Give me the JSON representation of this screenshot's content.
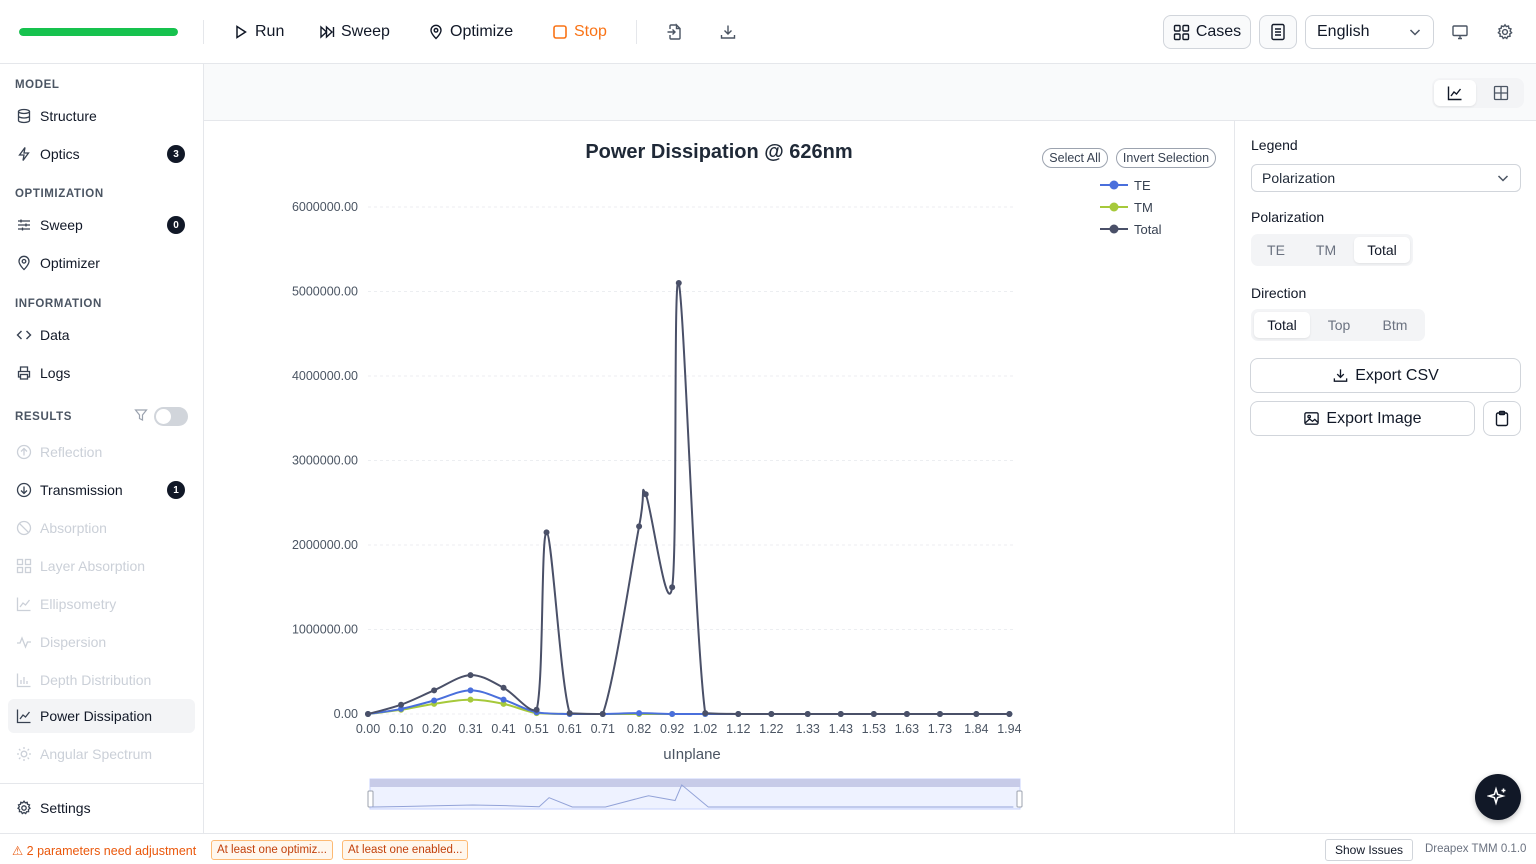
{
  "toolbar": {
    "progress": 1.0,
    "run_label": "Run",
    "sweep_label": "Sweep",
    "optimize_label": "Optimize",
    "stop_label": "Stop",
    "cases_label": "Cases",
    "language": "English"
  },
  "sidebar": {
    "sections": {
      "model": "MODEL",
      "optimization": "OPTIMIZATION",
      "information": "INFORMATION",
      "results": "RESULTS"
    },
    "model_items": [
      {
        "label": "Structure"
      },
      {
        "label": "Optics",
        "badge": "3"
      }
    ],
    "optimization_items": [
      {
        "label": "Sweep",
        "badge": "0"
      },
      {
        "label": "Optimizer"
      }
    ],
    "information_items": [
      {
        "label": "Data"
      },
      {
        "label": "Logs"
      }
    ],
    "results_items": [
      {
        "label": "Reflection"
      },
      {
        "label": "Transmission",
        "badge": "1"
      },
      {
        "label": "Absorption"
      },
      {
        "label": "Layer Absorption"
      },
      {
        "label": "Ellipsometry"
      },
      {
        "label": "Dispersion"
      },
      {
        "label": "Depth Distribution"
      },
      {
        "label": "Power Dissipation"
      },
      {
        "label": "Angular Spectrum"
      }
    ],
    "settings_label": "Settings"
  },
  "chart": {
    "select_all": "Select All",
    "invert_selection": "Invert Selection"
  },
  "right_panel": {
    "legend_label": "Legend",
    "legend_value": "Polarization",
    "polarization_label": "Polarization",
    "polarization_options": [
      "TE",
      "TM",
      "Total"
    ],
    "polarization_selected": "Total",
    "direction_label": "Direction",
    "direction_options": [
      "Total",
      "Top",
      "Btm"
    ],
    "direction_selected": "Total",
    "export_csv": "Export CSV",
    "export_image": "Export Image"
  },
  "status": {
    "warning": "⚠ 2 parameters need adjustment",
    "chip1": "At least one optimiz...",
    "chip2": "At least one enabled...",
    "show_issues": "Show Issues",
    "version": "Dreapex TMM 0.1.0"
  },
  "colors": {
    "te": "#4a6fdc",
    "tm": "#a6c93a",
    "total": "#4a5068",
    "accent_stop": "#f97316",
    "progress": "#16c24e"
  },
  "chart_data": {
    "type": "line",
    "title": "Power Dissipation @ 626nm",
    "xlabel": "uInplane",
    "ylabel": "",
    "xlim": [
      0,
      1.96
    ],
    "ylim": [
      0,
      6000000
    ],
    "y_ticks": [
      "0.00",
      "1000000.00",
      "2000000.00",
      "3000000.00",
      "4000000.00",
      "5000000.00",
      "6000000.00"
    ],
    "x_ticks": [
      "0.00",
      "0.10",
      "0.20",
      "0.31",
      "0.41",
      "0.51",
      "0.61",
      "0.71",
      "0.82",
      "0.92",
      "1.02",
      "1.12",
      "1.22",
      "1.33",
      "1.43",
      "1.53",
      "1.63",
      "1.73",
      "1.84",
      "1.94"
    ],
    "grid": true,
    "legend_position": "top-right",
    "series": [
      {
        "name": "TE",
        "x": [
          0.0,
          0.1,
          0.2,
          0.31,
          0.41,
          0.51,
          0.61,
          0.71,
          0.82,
          0.92,
          1.02,
          1.12,
          1.22,
          1.33,
          1.43,
          1.53,
          1.63,
          1.73,
          1.84,
          1.94
        ],
        "y": [
          0,
          60000,
          160000,
          280000,
          170000,
          20000,
          0,
          0,
          10000,
          0,
          0,
          0,
          0,
          0,
          0,
          0,
          0,
          0,
          0,
          0
        ]
      },
      {
        "name": "TM",
        "x": [
          0.0,
          0.1,
          0.2,
          0.31,
          0.41,
          0.51,
          0.61,
          0.71,
          0.82,
          0.92,
          1.02,
          1.12,
          1.22,
          1.33,
          1.43,
          1.53,
          1.63,
          1.73,
          1.84,
          1.94
        ],
        "y": [
          0,
          50000,
          120000,
          170000,
          120000,
          10000,
          0,
          0,
          0,
          0,
          0,
          0,
          0,
          0,
          0,
          0,
          0,
          0,
          0,
          0
        ]
      },
      {
        "name": "Total",
        "x": [
          0.0,
          0.1,
          0.2,
          0.31,
          0.41,
          0.51,
          0.54,
          0.61,
          0.71,
          0.82,
          0.84,
          0.92,
          0.94,
          1.02,
          1.12,
          1.22,
          1.33,
          1.43,
          1.53,
          1.63,
          1.73,
          1.84,
          1.94
        ],
        "y": [
          0,
          110000,
          280000,
          460000,
          310000,
          50000,
          2150000,
          10000,
          0,
          2220000,
          2600000,
          1500000,
          5100000,
          10000,
          0,
          0,
          0,
          0,
          0,
          0,
          0,
          0,
          0
        ]
      }
    ]
  }
}
